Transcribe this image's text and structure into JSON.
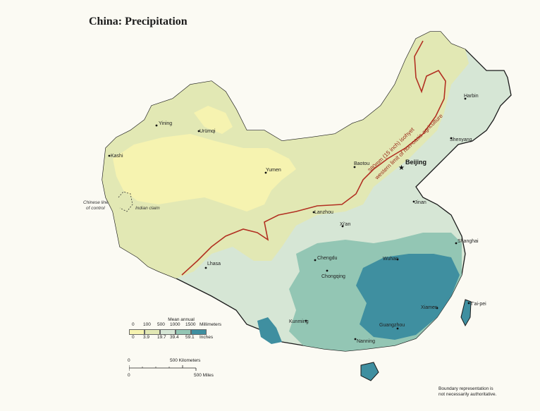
{
  "title": "China: Precipitation",
  "colors": {
    "background": "#fbfaf3",
    "band_0_100": "#f6f3b0",
    "band_100_500": "#e2e8b4",
    "band_500_1000": "#d6e6d5",
    "band_1000_1500": "#93c6b4",
    "band_1500_plus": "#3f8fa0",
    "isohyet": "#b23022"
  },
  "cities": [
    {
      "name": "Harbin"
    },
    {
      "name": "Shenyang"
    },
    {
      "name": "Beijing"
    },
    {
      "name": "Baotou"
    },
    {
      "name": "Yumen"
    },
    {
      "name": "Yining"
    },
    {
      "name": "Urümqi"
    },
    {
      "name": "Kashi"
    },
    {
      "name": "Lanzhou"
    },
    {
      "name": "Jinan"
    },
    {
      "name": "Xi'an"
    },
    {
      "name": "Shanghai"
    },
    {
      "name": "Wuhan"
    },
    {
      "name": "Chengdu"
    },
    {
      "name": "Chongqing"
    },
    {
      "name": "Lhasa"
    },
    {
      "name": "T'ai-pei"
    },
    {
      "name": "Xiamen"
    },
    {
      "name": "Guangzhou"
    },
    {
      "name": "Kunming"
    },
    {
      "name": "Nanning"
    }
  ],
  "isohyet_labels": {
    "line1": "380mm (15 inch) isohyet",
    "line2": "western limit of non-oasis agriculture"
  },
  "border_notes": {
    "line_of_control": [
      "Chinese line",
      "of control"
    ],
    "indian_claim": "Indian claim"
  },
  "legend": {
    "title": "Mean annual",
    "mm_ticks": [
      "0",
      "100",
      "500",
      "1000",
      "1500"
    ],
    "mm_unit": "Millimeters",
    "inch_ticks": [
      "0",
      "3.9",
      "19.7",
      "39.4",
      "59.1"
    ],
    "inch_unit": "Inches"
  },
  "scale_bar": {
    "km_start": "0",
    "km_label": "500 Kilometers",
    "mi_start": "0",
    "mi_label": "500 Miles"
  },
  "disclaimer": [
    "Boundary representation is",
    "not necessarily authoritative."
  ]
}
